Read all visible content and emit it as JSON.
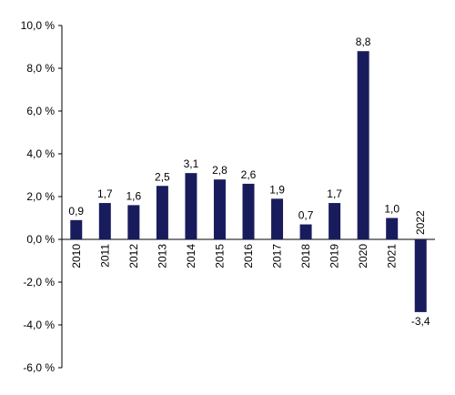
{
  "chart_data": {
    "type": "bar",
    "title": "",
    "xlabel": "",
    "ylabel": "",
    "categories": [
      "2010",
      "2011",
      "2012",
      "2013",
      "2014",
      "2015",
      "2016",
      "2017",
      "2018",
      "2019",
      "2020",
      "2021",
      "2022"
    ],
    "values": [
      0.9,
      1.7,
      1.6,
      2.5,
      3.1,
      2.8,
      2.6,
      1.9,
      0.7,
      1.7,
      8.8,
      1.0,
      -3.4
    ],
    "value_labels": [
      "0,9",
      "1,7",
      "1,6",
      "2,5",
      "3,1",
      "2,8",
      "2,6",
      "1,9",
      "0,7",
      "1,7",
      "8,8",
      "1,0",
      "-3,4"
    ],
    "ylim": [
      -6,
      10
    ],
    "yticks": [
      10,
      8,
      6,
      4,
      2,
      0,
      -2,
      -4,
      -6
    ],
    "ytick_labels": [
      "10,0 %",
      "8,0 %",
      "6,0 %",
      "4,0 %",
      "2,0 %",
      "0,0 %",
      "-2,0 %",
      "-4,0 %",
      "-6,0 %"
    ],
    "grid": false,
    "bar_color": "#191c5c",
    "axis_color": "#000000"
  }
}
